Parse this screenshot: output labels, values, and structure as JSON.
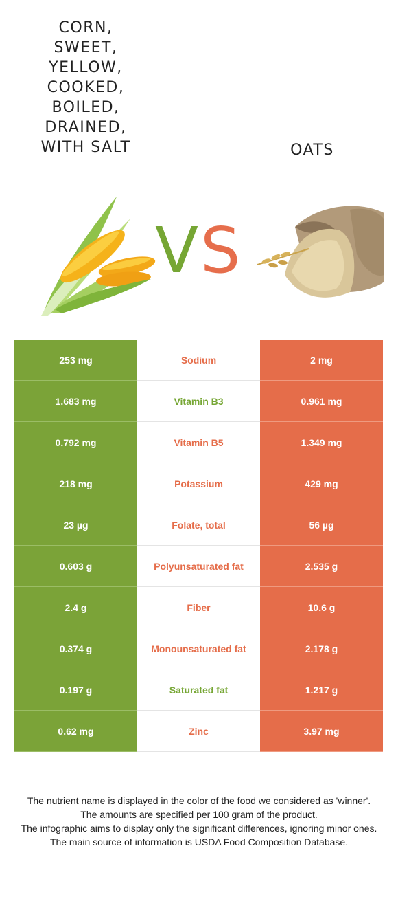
{
  "left_food": {
    "title_lines": [
      "CORN,",
      "SWEET,",
      "YELLOW,",
      "COOKED,",
      "BOILED,",
      "DRAINED,",
      "WITH SALT"
    ],
    "color": "#7ba338",
    "image": "corn-image"
  },
  "right_food": {
    "title": "OATS",
    "color": "#e56d4a",
    "image": "oats-image"
  },
  "vs": {
    "v": "V",
    "s": "S"
  },
  "rows": [
    {
      "nutrient": "Sodium",
      "left": "253 mg",
      "right": "2 mg",
      "winner": "right"
    },
    {
      "nutrient": "Vitamin B3",
      "left": "1.683 mg",
      "right": "0.961 mg",
      "winner": "left"
    },
    {
      "nutrient": "Vitamin B5",
      "left": "0.792 mg",
      "right": "1.349 mg",
      "winner": "right"
    },
    {
      "nutrient": "Potassium",
      "left": "218 mg",
      "right": "429 mg",
      "winner": "right"
    },
    {
      "nutrient": "Folate, total",
      "left": "23 µg",
      "right": "56 µg",
      "winner": "right"
    },
    {
      "nutrient": "Polyunsaturated fat",
      "left": "0.603 g",
      "right": "2.535 g",
      "winner": "right"
    },
    {
      "nutrient": "Fiber",
      "left": "2.4 g",
      "right": "10.6 g",
      "winner": "right"
    },
    {
      "nutrient": "Monounsaturated fat",
      "left": "0.374 g",
      "right": "2.178 g",
      "winner": "right"
    },
    {
      "nutrient": "Saturated fat",
      "left": "0.197 g",
      "right": "1.217 g",
      "winner": "left"
    },
    {
      "nutrient": "Zinc",
      "left": "0.62 mg",
      "right": "3.97 mg",
      "winner": "right"
    }
  ],
  "notes": [
    "The nutrient name is displayed in the color of the food we considered as 'winner'.",
    "The amounts are specified per 100 gram of the product.",
    "The infographic aims to display only the significant differences, ignoring minor ones.",
    "The main source of information is USDA Food Composition Database."
  ]
}
